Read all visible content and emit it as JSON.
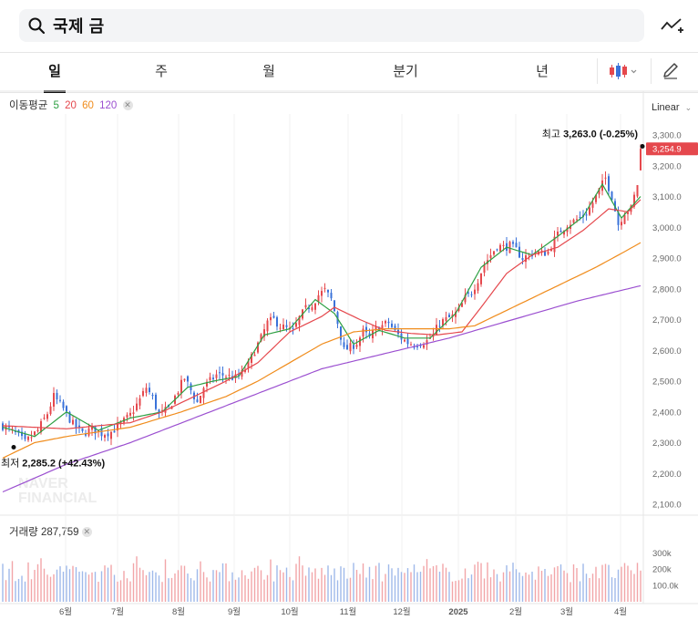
{
  "search": {
    "query": "국제 금"
  },
  "tabs": [
    "일",
    "주",
    "월",
    "분기",
    "년"
  ],
  "active_tab": "일",
  "ma_legend": {
    "label": "이동평균",
    "periods": [
      {
        "value": "5",
        "color": "#2ea043"
      },
      {
        "value": "20",
        "color": "#e5484d"
      },
      {
        "value": "60",
        "color": "#f08c1c"
      },
      {
        "value": "120",
        "color": "#9b4fd0"
      }
    ]
  },
  "scale_mode": "Linear",
  "volume_legend": {
    "label": "거래량",
    "value": "287,759"
  },
  "watermark": [
    "NAVER",
    "FINANCIAL"
  ],
  "colors": {
    "up": "#e5484d",
    "down": "#3a72d9",
    "accent": "#e5484d"
  },
  "chart_data": {
    "type": "candlestick",
    "title": "국제 금",
    "price_axis": {
      "ticks": [
        "3,300.0",
        "3,200.0",
        "3,100.0",
        "3,000.0",
        "2,900.0",
        "2,800.0",
        "2,700.0",
        "2,600.0",
        "2,500.0",
        "2,400.0",
        "2,300.0",
        "2,200.0",
        "2,100.0"
      ],
      "ylim": [
        2100,
        3300
      ]
    },
    "last_price": "3,254.9",
    "high_label": {
      "prefix": "최고",
      "value": "3,263.0 (-0.25%)"
    },
    "low_label": {
      "prefix": "최저",
      "value": "2,285.2 (+42.43%)"
    },
    "x_axis": {
      "labels": [
        "6월",
        "7월",
        "8월",
        "9월",
        "10월",
        "11월",
        "12월",
        "2025",
        "2월",
        "3월",
        "4월"
      ]
    },
    "volume_axis": {
      "ticks": [
        "300k",
        "200k",
        "100.0k"
      ]
    },
    "close_path": [
      [
        0,
        2355
      ],
      [
        4,
        2330
      ],
      [
        7,
        2300
      ],
      [
        11,
        2340
      ],
      [
        14,
        2395
      ],
      [
        16,
        2450
      ],
      [
        19,
        2410
      ],
      [
        22,
        2360
      ],
      [
        25,
        2330
      ],
      [
        28,
        2345
      ],
      [
        31,
        2330
      ],
      [
        34,
        2335
      ],
      [
        37,
        2360
      ],
      [
        40,
        2390
      ],
      [
        43,
        2440
      ],
      [
        45,
        2480
      ],
      [
        47,
        2445
      ],
      [
        49,
        2390
      ],
      [
        52,
        2410
      ],
      [
        55,
        2470
      ],
      [
        57,
        2510
      ],
      [
        59,
        2470
      ],
      [
        61,
        2430
      ],
      [
        63,
        2480
      ],
      [
        65,
        2500
      ],
      [
        67,
        2520
      ],
      [
        69,
        2520
      ],
      [
        71,
        2515
      ],
      [
        73,
        2510
      ],
      [
        75,
        2525
      ],
      [
        77,
        2555
      ],
      [
        79,
        2600
      ],
      [
        81,
        2640
      ],
      [
        83,
        2690
      ],
      [
        85,
        2700
      ],
      [
        87,
        2680
      ],
      [
        89,
        2670
      ],
      [
        91,
        2660
      ],
      [
        93,
        2705
      ],
      [
        95,
        2735
      ],
      [
        97,
        2750
      ],
      [
        99,
        2780
      ],
      [
        101,
        2795
      ],
      [
        103,
        2765
      ],
      [
        105,
        2690
      ],
      [
        107,
        2600
      ],
      [
        109,
        2610
      ],
      [
        111,
        2625
      ],
      [
        113,
        2660
      ],
      [
        115,
        2640
      ],
      [
        117,
        2670
      ],
      [
        119,
        2680
      ],
      [
        121,
        2690
      ],
      [
        123,
        2660
      ],
      [
        125,
        2640
      ],
      [
        127,
        2625
      ],
      [
        129,
        2620
      ],
      [
        131,
        2625
      ],
      [
        133,
        2630
      ],
      [
        135,
        2650
      ],
      [
        137,
        2690
      ],
      [
        139,
        2700
      ],
      [
        141,
        2710
      ],
      [
        143,
        2730
      ],
      [
        145,
        2770
      ],
      [
        147,
        2790
      ],
      [
        149,
        2830
      ],
      [
        151,
        2880
      ],
      [
        153,
        2910
      ],
      [
        155,
        2940
      ],
      [
        157,
        2935
      ],
      [
        159,
        2940
      ],
      [
        161,
        2925
      ],
      [
        163,
        2900
      ],
      [
        165,
        2910
      ],
      [
        167,
        2920
      ],
      [
        169,
        2915
      ],
      [
        171,
        2920
      ],
      [
        173,
        2960
      ],
      [
        175,
        2990
      ],
      [
        177,
        3010
      ],
      [
        179,
        3020
      ],
      [
        181,
        3030
      ],
      [
        183,
        3045
      ],
      [
        185,
        3080
      ],
      [
        187,
        3120
      ],
      [
        189,
        3160
      ],
      [
        191,
        3100
      ],
      [
        193,
        3010
      ],
      [
        195,
        3050
      ],
      [
        197,
        3060
      ],
      [
        199,
        3140
      ],
      [
        200,
        3254.9
      ]
    ],
    "ma_path": {
      "5": [
        [
          0,
          2350
        ],
        [
          10,
          2320
        ],
        [
          20,
          2400
        ],
        [
          30,
          2340
        ],
        [
          40,
          2380
        ],
        [
          50,
          2400
        ],
        [
          58,
          2480
        ],
        [
          66,
          2500
        ],
        [
          74,
          2515
        ],
        [
          82,
          2650
        ],
        [
          90,
          2670
        ],
        [
          98,
          2765
        ],
        [
          104,
          2720
        ],
        [
          110,
          2620
        ],
        [
          118,
          2665
        ],
        [
          126,
          2640
        ],
        [
          134,
          2640
        ],
        [
          142,
          2720
        ],
        [
          150,
          2870
        ],
        [
          158,
          2935
        ],
        [
          166,
          2910
        ],
        [
          174,
          2970
        ],
        [
          182,
          3035
        ],
        [
          188,
          3140
        ],
        [
          194,
          3030
        ],
        [
          200,
          3100
        ]
      ],
      "20": [
        [
          0,
          2355
        ],
        [
          20,
          2345
        ],
        [
          40,
          2365
        ],
        [
          50,
          2400
        ],
        [
          60,
          2450
        ],
        [
          70,
          2500
        ],
        [
          80,
          2560
        ],
        [
          90,
          2660
        ],
        [
          100,
          2710
        ],
        [
          104,
          2740
        ],
        [
          112,
          2700
        ],
        [
          120,
          2665
        ],
        [
          128,
          2655
        ],
        [
          136,
          2650
        ],
        [
          144,
          2660
        ],
        [
          150,
          2740
        ],
        [
          158,
          2850
        ],
        [
          166,
          2910
        ],
        [
          174,
          2935
        ],
        [
          182,
          2990
        ],
        [
          190,
          3060
        ],
        [
          196,
          3050
        ],
        [
          200,
          3090
        ]
      ],
      "60": [
        [
          0,
          2250
        ],
        [
          10,
          2300
        ],
        [
          20,
          2320
        ],
        [
          40,
          2350
        ],
        [
          56,
          2400
        ],
        [
          70,
          2450
        ],
        [
          80,
          2500
        ],
        [
          90,
          2560
        ],
        [
          100,
          2620
        ],
        [
          110,
          2660
        ],
        [
          120,
          2670
        ],
        [
          130,
          2670
        ],
        [
          140,
          2670
        ],
        [
          148,
          2680
        ],
        [
          156,
          2720
        ],
        [
          166,
          2770
        ],
        [
          176,
          2820
        ],
        [
          186,
          2870
        ],
        [
          194,
          2915
        ],
        [
          200,
          2950
        ]
      ],
      "120": [
        [
          0,
          2140
        ],
        [
          20,
          2230
        ],
        [
          40,
          2300
        ],
        [
          60,
          2380
        ],
        [
          80,
          2460
        ],
        [
          100,
          2540
        ],
        [
          120,
          2590
        ],
        [
          140,
          2640
        ],
        [
          160,
          2700
        ],
        [
          180,
          2760
        ],
        [
          200,
          2810
        ]
      ]
    }
  }
}
